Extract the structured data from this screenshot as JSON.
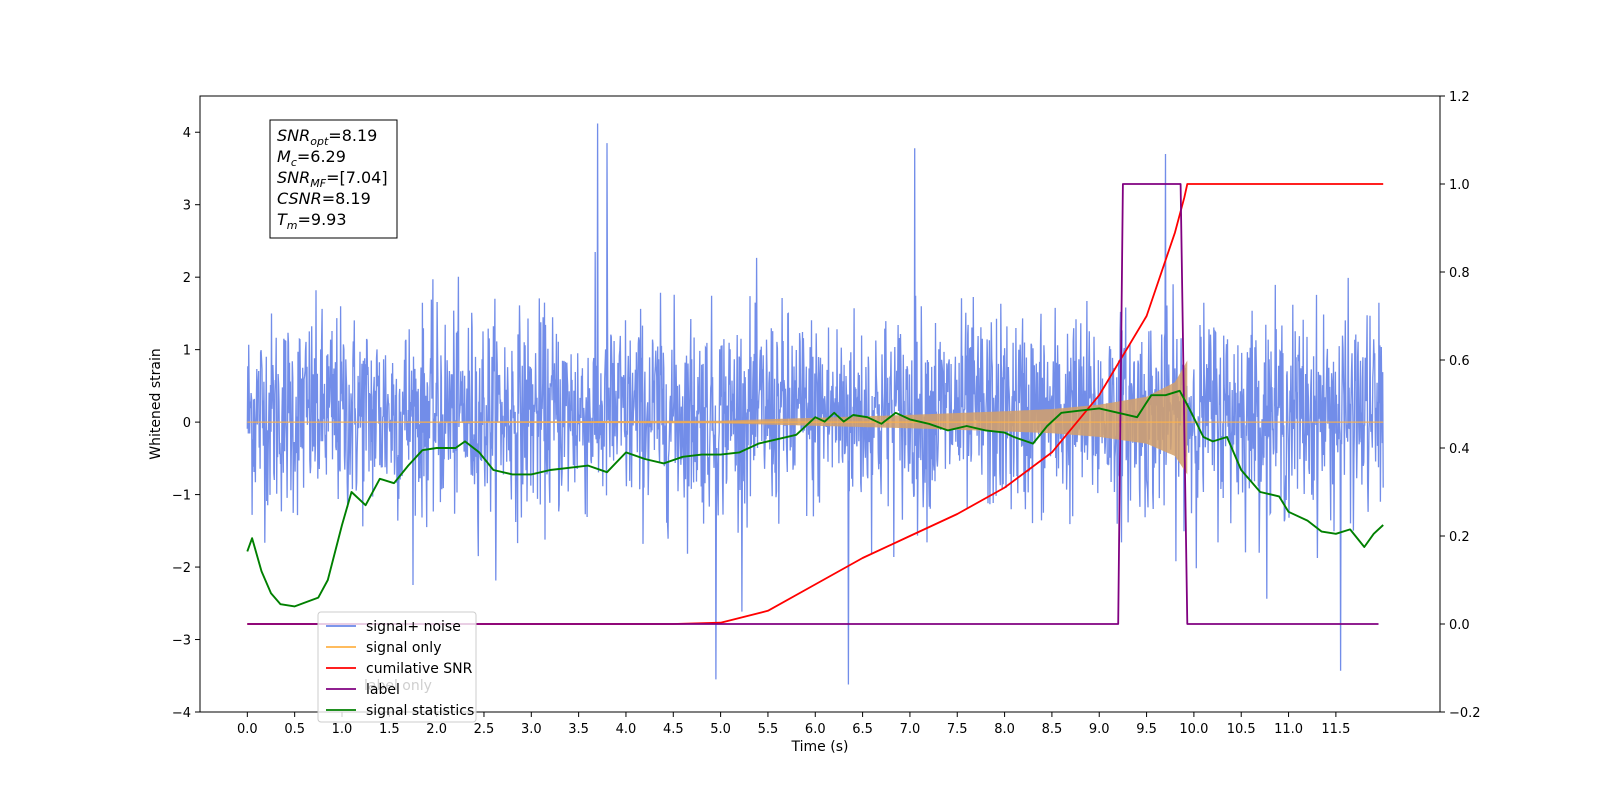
{
  "chart_data": {
    "type": "line",
    "title": "",
    "xlabel": "Time (s)",
    "ylabel": "Whitened strain",
    "ylabel_right": "",
    "xlim": [
      -0.5,
      12.6
    ],
    "ylim_left": [
      -4,
      4.5
    ],
    "ylim_right": [
      -0.2,
      1.2
    ],
    "x_ticks": [
      0.0,
      0.5,
      1.0,
      1.5,
      2.0,
      2.5,
      3.0,
      3.5,
      4.0,
      4.5,
      5.0,
      5.5,
      6.0,
      6.5,
      7.0,
      7.5,
      8.0,
      8.5,
      9.0,
      9.5,
      10.0,
      10.5,
      11.0,
      11.5
    ],
    "x_tick_labels": [
      "0.0",
      "0.5",
      "1.0",
      "1.5",
      "2.0",
      "2.5",
      "3.0",
      "3.5",
      "4.0",
      "4.5",
      "5.0",
      "5.5",
      "6.0",
      "6.5",
      "7.0",
      "7.5",
      "8.0",
      "8.5",
      "9.0",
      "9.5",
      "10.0",
      "10.5",
      "11.0",
      "11.5"
    ],
    "y_left_ticks": [
      -4,
      -3,
      -2,
      -1,
      0,
      1,
      2,
      3,
      4
    ],
    "y_left_tick_labels": [
      "−4",
      "−3",
      "−2",
      "−1",
      "0",
      "1",
      "2",
      "3",
      "4"
    ],
    "y_right_ticks": [
      -0.2,
      0.0,
      0.2,
      0.4,
      0.6,
      0.8,
      1.0,
      1.2
    ],
    "y_right_tick_labels": [
      "−0.2",
      "0.0",
      "0.2",
      "0.4",
      "0.6",
      "0.8",
      "1.0",
      "1.2"
    ],
    "grid": false,
    "legend_position": "lower-left",
    "legend": [
      {
        "name": "signal+ noise",
        "color": "#6a87e8"
      },
      {
        "name": "signal only",
        "color": "#ffb347"
      },
      {
        "name": "cumilative SNR",
        "color": "#ff0000"
      },
      {
        "name": "label",
        "color": "#800080"
      },
      {
        "name": "signal statistics",
        "color": "#008000"
      }
    ],
    "legend_hidden_text": "label only",
    "annotation": {
      "lines": [
        {
          "main": "SNR",
          "sub": "opt",
          "value": "=8.19"
        },
        {
          "main": "M",
          "sub": "c",
          "value": "=6.29"
        },
        {
          "main": "SNR",
          "sub": "MF",
          "value": "=[7.04]"
        },
        {
          "main": "CSNR",
          "sub": "",
          "value": "=8.19"
        },
        {
          "main": "T",
          "sub": "m",
          "value": "=9.93"
        }
      ]
    },
    "series": [
      {
        "name": "signal+ noise",
        "axis": "left",
        "color": "#6a87e8",
        "description_range": [
          0.0,
          12.0
        ],
        "x_range": [
          0.0,
          12.0
        ],
        "typical_band": [
          -2.0,
          2.3
        ],
        "extremes": [
          {
            "x": 3.7,
            "y": 4.12
          },
          {
            "x": 3.8,
            "y": 3.85
          },
          {
            "x": 4.95,
            "y": -3.55
          },
          {
            "x": 6.35,
            "y": -3.62
          },
          {
            "x": 7.05,
            "y": 3.78
          },
          {
            "x": 9.7,
            "y": 3.7
          },
          {
            "x": 11.55,
            "y": -3.43
          }
        ]
      },
      {
        "name": "signal only",
        "axis": "left",
        "color": "#ffb347",
        "x_range": [
          0.0,
          9.93
        ],
        "envelope": [
          {
            "x": 0.0,
            "y": 0.0
          },
          {
            "x": 5.0,
            "y": 0.02
          },
          {
            "x": 6.0,
            "y": 0.06
          },
          {
            "x": 7.0,
            "y": 0.1
          },
          {
            "x": 8.0,
            "y": 0.15
          },
          {
            "x": 8.5,
            "y": 0.18
          },
          {
            "x": 9.0,
            "y": 0.24
          },
          {
            "x": 9.5,
            "y": 0.35
          },
          {
            "x": 9.8,
            "y": 0.55
          },
          {
            "x": 9.93,
            "y": 0.85
          }
        ]
      },
      {
        "name": "cumilative SNR",
        "axis": "right",
        "color": "#ff0000",
        "points": [
          {
            "x": 0.0,
            "y": 0.0
          },
          {
            "x": 4.5,
            "y": 0.0
          },
          {
            "x": 5.0,
            "y": 0.003
          },
          {
            "x": 5.5,
            "y": 0.03
          },
          {
            "x": 6.0,
            "y": 0.09
          },
          {
            "x": 6.5,
            "y": 0.15
          },
          {
            "x": 7.0,
            "y": 0.2
          },
          {
            "x": 7.5,
            "y": 0.25
          },
          {
            "x": 8.0,
            "y": 0.31
          },
          {
            "x": 8.5,
            "y": 0.39
          },
          {
            "x": 9.0,
            "y": 0.52
          },
          {
            "x": 9.5,
            "y": 0.7
          },
          {
            "x": 9.8,
            "y": 0.89
          },
          {
            "x": 9.9,
            "y": 0.97
          },
          {
            "x": 9.93,
            "y": 1.0
          },
          {
            "x": 12.0,
            "y": 1.0
          }
        ]
      },
      {
        "name": "label",
        "axis": "right",
        "color": "#800080",
        "points": [
          {
            "x": 0.0,
            "y": 0.0
          },
          {
            "x": 9.2,
            "y": 0.0
          },
          {
            "x": 9.25,
            "y": 1.0
          },
          {
            "x": 9.86,
            "y": 1.0
          },
          {
            "x": 9.93,
            "y": 0.0
          },
          {
            "x": 11.95,
            "y": 0.0
          }
        ]
      },
      {
        "name": "signal statistics",
        "axis": "right",
        "color": "#008000",
        "points": [
          {
            "x": 0.0,
            "y": 0.165
          },
          {
            "x": 0.05,
            "y": 0.195
          },
          {
            "x": 0.15,
            "y": 0.12
          },
          {
            "x": 0.25,
            "y": 0.07
          },
          {
            "x": 0.35,
            "y": 0.045
          },
          {
            "x": 0.5,
            "y": 0.04
          },
          {
            "x": 0.6,
            "y": 0.048
          },
          {
            "x": 0.75,
            "y": 0.06
          },
          {
            "x": 0.85,
            "y": 0.1
          },
          {
            "x": 1.0,
            "y": 0.225
          },
          {
            "x": 1.1,
            "y": 0.3
          },
          {
            "x": 1.25,
            "y": 0.27
          },
          {
            "x": 1.4,
            "y": 0.33
          },
          {
            "x": 1.55,
            "y": 0.32
          },
          {
            "x": 1.7,
            "y": 0.36
          },
          {
            "x": 1.85,
            "y": 0.395
          },
          {
            "x": 2.0,
            "y": 0.4
          },
          {
            "x": 2.2,
            "y": 0.4
          },
          {
            "x": 2.3,
            "y": 0.415
          },
          {
            "x": 2.45,
            "y": 0.39
          },
          {
            "x": 2.6,
            "y": 0.35
          },
          {
            "x": 2.8,
            "y": 0.34
          },
          {
            "x": 3.0,
            "y": 0.34
          },
          {
            "x": 3.2,
            "y": 0.35
          },
          {
            "x": 3.4,
            "y": 0.355
          },
          {
            "x": 3.6,
            "y": 0.36
          },
          {
            "x": 3.8,
            "y": 0.345
          },
          {
            "x": 4.0,
            "y": 0.39
          },
          {
            "x": 4.2,
            "y": 0.375
          },
          {
            "x": 4.4,
            "y": 0.365
          },
          {
            "x": 4.6,
            "y": 0.38
          },
          {
            "x": 4.8,
            "y": 0.385
          },
          {
            "x": 5.0,
            "y": 0.385
          },
          {
            "x": 5.2,
            "y": 0.39
          },
          {
            "x": 5.4,
            "y": 0.41
          },
          {
            "x": 5.6,
            "y": 0.42
          },
          {
            "x": 5.8,
            "y": 0.43
          },
          {
            "x": 6.0,
            "y": 0.47
          },
          {
            "x": 6.1,
            "y": 0.46
          },
          {
            "x": 6.2,
            "y": 0.48
          },
          {
            "x": 6.3,
            "y": 0.46
          },
          {
            "x": 6.4,
            "y": 0.475
          },
          {
            "x": 6.55,
            "y": 0.47
          },
          {
            "x": 6.7,
            "y": 0.455
          },
          {
            "x": 6.85,
            "y": 0.48
          },
          {
            "x": 7.0,
            "y": 0.465
          },
          {
            "x": 7.2,
            "y": 0.455
          },
          {
            "x": 7.4,
            "y": 0.44
          },
          {
            "x": 7.6,
            "y": 0.45
          },
          {
            "x": 7.8,
            "y": 0.44
          },
          {
            "x": 8.0,
            "y": 0.435
          },
          {
            "x": 8.1,
            "y": 0.425
          },
          {
            "x": 8.3,
            "y": 0.41
          },
          {
            "x": 8.45,
            "y": 0.45
          },
          {
            "x": 8.6,
            "y": 0.48
          },
          {
            "x": 8.8,
            "y": 0.485
          },
          {
            "x": 9.0,
            "y": 0.49
          },
          {
            "x": 9.2,
            "y": 0.48
          },
          {
            "x": 9.4,
            "y": 0.47
          },
          {
            "x": 9.55,
            "y": 0.52
          },
          {
            "x": 9.7,
            "y": 0.52
          },
          {
            "x": 9.85,
            "y": 0.53
          },
          {
            "x": 9.95,
            "y": 0.49
          },
          {
            "x": 10.1,
            "y": 0.425
          },
          {
            "x": 10.2,
            "y": 0.415
          },
          {
            "x": 10.35,
            "y": 0.425
          },
          {
            "x": 10.5,
            "y": 0.35
          },
          {
            "x": 10.7,
            "y": 0.3
          },
          {
            "x": 10.9,
            "y": 0.29
          },
          {
            "x": 11.0,
            "y": 0.255
          },
          {
            "x": 11.2,
            "y": 0.235
          },
          {
            "x": 11.35,
            "y": 0.21
          },
          {
            "x": 11.5,
            "y": 0.205
          },
          {
            "x": 11.65,
            "y": 0.215
          },
          {
            "x": 11.8,
            "y": 0.175
          },
          {
            "x": 11.9,
            "y": 0.205
          },
          {
            "x": 12.0,
            "y": 0.225
          }
        ]
      }
    ]
  }
}
